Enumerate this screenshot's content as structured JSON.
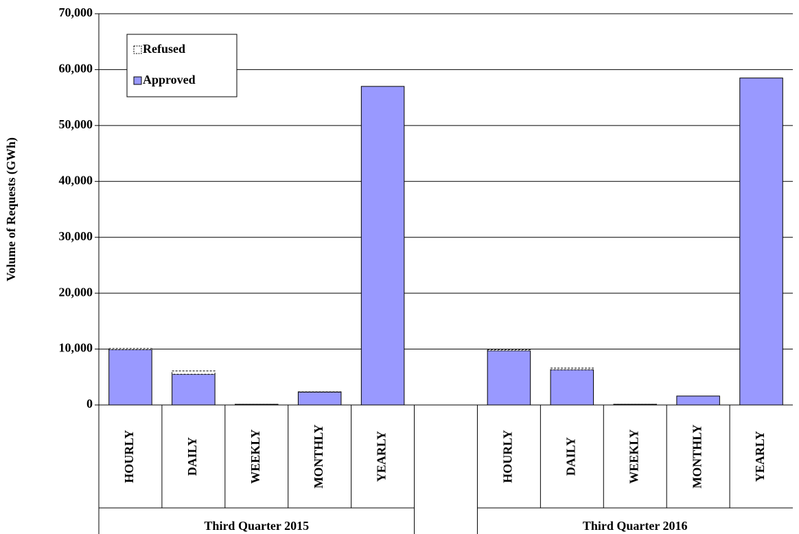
{
  "chart_data": {
    "type": "bar",
    "stacked": true,
    "y_label": "Volume of Requests (GWh)",
    "categories": [
      "HOURLY",
      "DAILY",
      "WEEKLY",
      "MONTHLY",
      "YEARLY",
      null,
      "HOURLY",
      "DAILY",
      "WEEKLY",
      "MONTHLY",
      "YEARLY"
    ],
    "groups": [
      "Third Quarter 2015",
      "Third Quarter 2016"
    ],
    "series": [
      {
        "name": "Approved",
        "color": "#9999ff",
        "values": [
          9900,
          5500,
          100,
          2300,
          57000,
          null,
          9700,
          6300,
          100,
          1600,
          58500
        ]
      },
      {
        "name": "Refused",
        "color": "#ffffff",
        "values": [
          200,
          600,
          20,
          50,
          0,
          null,
          200,
          300,
          20,
          0,
          0
        ]
      }
    ],
    "ylim": [
      0,
      70000
    ],
    "yticks": [
      0,
      {
        "value": 10000,
        "label": "10,000"
      },
      {
        "value": 20000,
        "label": "20,000"
      },
      {
        "value": 30000,
        "label": "30,000"
      },
      {
        "value": 40000,
        "label": "40,000"
      },
      {
        "value": 50000,
        "label": "50,000"
      },
      {
        "value": 60000,
        "label": "60,000"
      },
      {
        "value": 70000,
        "label": "70,000"
      }
    ],
    "grid": true,
    "legend": "upper left"
  }
}
